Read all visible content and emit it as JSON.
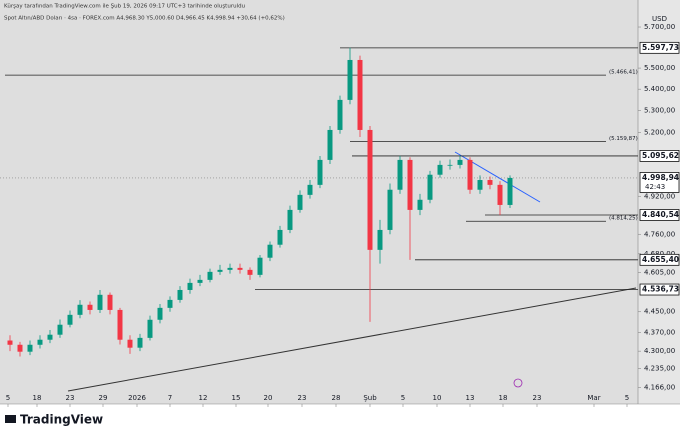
{
  "chart_data": {
    "type": "candlestick",
    "subtitle": "Kürşay tarafından TradingView.com ile Şub 19, 2026 09:17 UTC+3 tarihinde oluşturuldu",
    "title": "Spot Altın/ABD Doları · 4sa · FOREX.com  A4,968.30  Y5,000.60  D4,966.45  K4,998.94  +30,64 (+0,62%)",
    "currency": "USD",
    "watermark": "TradingView",
    "log_scale": true,
    "up_color": "#089981",
    "down_color": "#f23645",
    "x": [
      1,
      3,
      5,
      7,
      9,
      11,
      13,
      15,
      17,
      19,
      21,
      23,
      25,
      27,
      29,
      31,
      33,
      35,
      37,
      39,
      41,
      43,
      45,
      47,
      49,
      51,
      53,
      55,
      57,
      59,
      61,
      63,
      65,
      67,
      69,
      71,
      73,
      75,
      77,
      79,
      81,
      83,
      85,
      87,
      89,
      91,
      93,
      95,
      97,
      99,
      101
    ],
    "open": [
      4340,
      4324,
      4298,
      4324,
      4343,
      4362,
      4400,
      4438,
      4477,
      4457,
      4516,
      4457,
      4343,
      4313,
      4350,
      4419,
      4465,
      4496,
      4535,
      4563,
      4575,
      4607,
      4615,
      4623,
      4615,
      4595,
      4664,
      4717,
      4778,
      4862,
      4926,
      4969,
      5078,
      5212,
      5350,
      5539,
      5212,
      4696,
      4778,
      4948,
      5078,
      4862,
      4905,
      5013,
      5056,
      5056,
      5078,
      4948,
      4990,
      4969,
      4883
    ],
    "high": [
      4360,
      4335,
      4340,
      4360,
      4380,
      4420,
      4455,
      4495,
      4490,
      4535,
      4525,
      4465,
      4360,
      4365,
      4435,
      4480,
      4510,
      4550,
      4580,
      4595,
      4620,
      4635,
      4640,
      4640,
      4625,
      4675,
      4730,
      4795,
      4880,
      4945,
      4990,
      5095,
      5230,
      5370,
      5598,
      5560,
      5230,
      4820,
      4975,
      5096,
      5090,
      4930,
      5030,
      5075,
      5080,
      5096,
      5090,
      5010,
      5005,
      4985,
      5010
    ],
    "low": [
      4300,
      4280,
      4285,
      4310,
      4330,
      4350,
      4390,
      4425,
      4440,
      4445,
      4440,
      4325,
      4290,
      4300,
      4340,
      4405,
      4450,
      4485,
      4520,
      4550,
      4565,
      4595,
      4600,
      4600,
      4575,
      4585,
      4650,
      4705,
      4765,
      4850,
      4910,
      4955,
      5060,
      5195,
      5330,
      5180,
      4411,
      4640,
      4760,
      4930,
      4655,
      4840,
      4890,
      5000,
      5035,
      5040,
      4930,
      4930,
      4950,
      4840,
      4870
    ],
    "close": [
      4324,
      4298,
      4324,
      4343,
      4362,
      4400,
      4438,
      4477,
      4457,
      4516,
      4457,
      4343,
      4313,
      4350,
      4419,
      4465,
      4496,
      4535,
      4563,
      4575,
      4607,
      4615,
      4623,
      4615,
      4595,
      4664,
      4717,
      4778,
      4862,
      4926,
      4969,
      5078,
      5212,
      5350,
      5539,
      5212,
      4696,
      4778,
      4948,
      5078,
      4862,
      4905,
      5013,
      5056,
      5056,
      5078,
      4948,
      4990,
      4969,
      4883,
      4999
    ],
    "xlim": [
      0,
      126.6
    ],
    "xticks": [
      {
        "value": 0.6,
        "label": "5"
      },
      {
        "value": 6.4,
        "label": "18"
      },
      {
        "value": 13,
        "label": "23"
      },
      {
        "value": 19.6,
        "label": "29"
      },
      {
        "value": 26.4,
        "label": "2026"
      },
      {
        "value": 33,
        "label": "7"
      },
      {
        "value": 39.6,
        "label": "12"
      },
      {
        "value": 46.2,
        "label": "15"
      },
      {
        "value": 52.6,
        "label": "20"
      },
      {
        "value": 59.4,
        "label": "23"
      },
      {
        "value": 66.2,
        "label": "28"
      },
      {
        "value": 73,
        "label": "Şub"
      },
      {
        "value": 79.6,
        "label": "5"
      },
      {
        "value": 86.4,
        "label": "10"
      },
      {
        "value": 93,
        "label": "13"
      },
      {
        "value": 99.6,
        "label": "18"
      },
      {
        "value": 106.4,
        "label": "23"
      },
      {
        "value": 117.8,
        "label": "Mar"
      },
      {
        "value": 124.4,
        "label": "5"
      }
    ],
    "ylim": [
      4150,
      5790
    ],
    "yticks": [
      {
        "value": 5700,
        "label": "5.700,00"
      },
      {
        "value": 5500,
        "label": "5.500,00"
      },
      {
        "value": 5400,
        "label": "5.400,00"
      },
      {
        "value": 5300,
        "label": "5.300,00"
      },
      {
        "value": 5200,
        "label": "5.200,00"
      },
      {
        "value": 4920,
        "label": "4.920,00"
      },
      {
        "value": 4760,
        "label": "4.760,00"
      },
      {
        "value": 4680,
        "label": "4.680,00"
      },
      {
        "value": 4605,
        "label": "4.605,00"
      },
      {
        "value": 4450,
        "label": "4.450,00"
      },
      {
        "value": 4370,
        "label": "4.370,00"
      },
      {
        "value": 4300,
        "label": "4.300,00"
      },
      {
        "value": 4235,
        "label": "4.235,00"
      },
      {
        "value": 4166,
        "label": "4.166,00"
      }
    ],
    "levels": [
      {
        "value": 5597.73,
        "label": "5.597,73"
      },
      {
        "value": 5095.62,
        "label": "5.095,62"
      },
      {
        "value": 4840.54,
        "label": "4.840,54"
      },
      {
        "value": 4655.4,
        "label": "4.655,40"
      },
      {
        "value": 4536.73,
        "label": "4.536,73"
      }
    ],
    "annotations": [
      {
        "value": 5466.41,
        "label": "(5.466,41)"
      },
      {
        "value": 5159.87,
        "label": "(5.159,87)"
      },
      {
        "value": 4814.25,
        "label": "(4.814,25)"
      }
    ],
    "last_price": {
      "value": 4998.94,
      "label": "4.998,94",
      "countdown": "42:43"
    }
  }
}
